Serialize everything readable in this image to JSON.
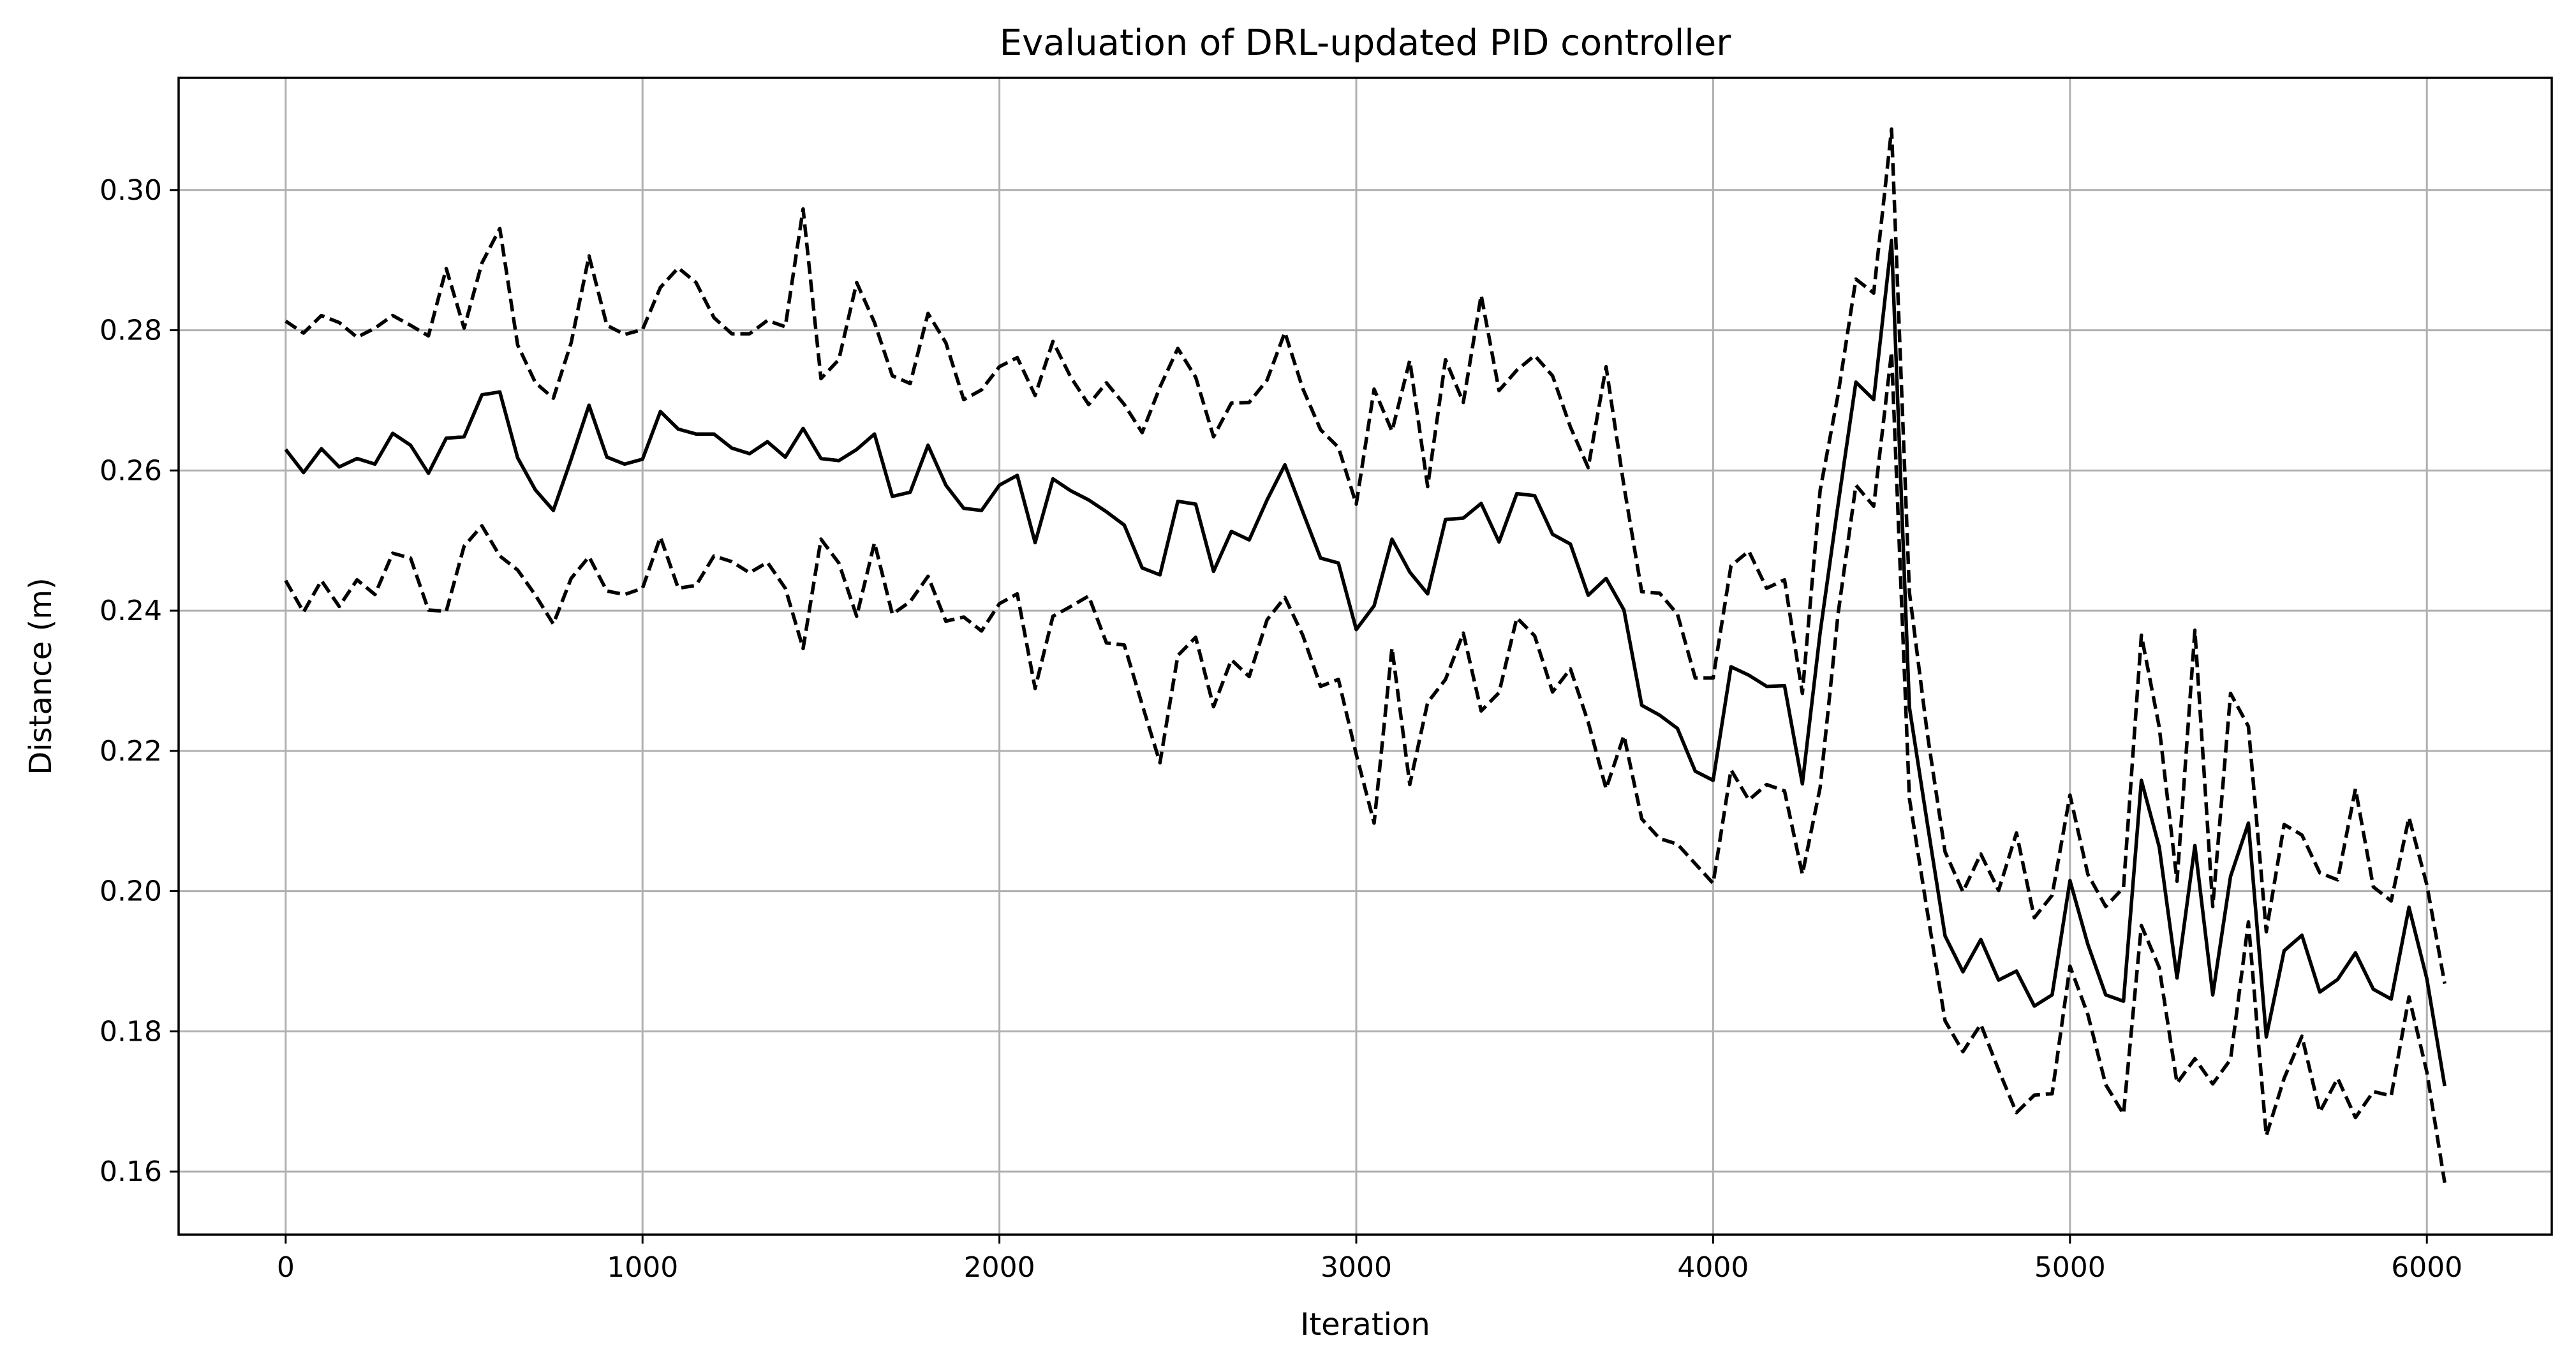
{
  "chart_data": {
    "type": "line",
    "title": "Evaluation of DRL-updated PID controller",
    "xlabel": "Iteration",
    "ylabel": "Distance (m)",
    "xlim": [
      -300,
      6350
    ],
    "ylim": [
      0.151,
      0.316
    ],
    "xticks": [
      0,
      1000,
      2000,
      3000,
      4000,
      5000,
      6000
    ],
    "yticks": [
      0.16,
      0.18,
      0.2,
      0.22,
      0.24,
      0.26,
      0.28,
      0.3
    ],
    "ytick_labels": [
      "0.16",
      "0.18",
      "0.20",
      "0.22",
      "0.24",
      "0.26",
      "0.28",
      "0.30"
    ],
    "xtick_labels": [
      "0",
      "1000",
      "2000",
      "3000",
      "4000",
      "5000",
      "6000"
    ],
    "grid": true,
    "line_color": "#000000",
    "x": [
      0,
      50,
      100,
      150,
      200,
      250,
      300,
      350,
      400,
      450,
      500,
      550,
      600,
      650,
      700,
      750,
      800,
      850,
      900,
      950,
      1000,
      1050,
      1100,
      1150,
      1200,
      1250,
      1300,
      1350,
      1400,
      1450,
      1500,
      1550,
      1600,
      1650,
      1700,
      1750,
      1800,
      1850,
      1900,
      1950,
      2000,
      2050,
      2100,
      2150,
      2200,
      2250,
      2300,
      2350,
      2400,
      2450,
      2500,
      2550,
      2600,
      2650,
      2700,
      2750,
      2800,
      2850,
      2900,
      2950,
      3000,
      3050,
      3100,
      3150,
      3200,
      3250,
      3300,
      3350,
      3400,
      3450,
      3500,
      3550,
      3600,
      3650,
      3700,
      3750,
      3800,
      3850,
      3900,
      3950,
      4000,
      4050,
      4100,
      4150,
      4200,
      4250,
      4300,
      4350,
      4400,
      4450,
      4500,
      4550,
      4600,
      4650,
      4700,
      4750,
      4800,
      4850,
      4900,
      4950,
      5000,
      5050,
      5100,
      5150,
      5200,
      5250,
      5300,
      5350,
      5400,
      5450,
      5500,
      5550,
      5600,
      5650,
      5700,
      5750,
      5800,
      5850,
      5900,
      5950,
      6000,
      6050
    ],
    "series": [
      {
        "style": "solid",
        "values": [
          0.263,
          0.2597,
          0.2631,
          0.2605,
          0.2617,
          0.2609,
          0.2653,
          0.2636,
          0.2596,
          0.2646,
          0.2648,
          0.2708,
          0.2712,
          0.2618,
          0.2572,
          0.2543,
          0.2616,
          0.2693,
          0.2619,
          0.2609,
          0.2616,
          0.2684,
          0.2659,
          0.2652,
          0.2652,
          0.2632,
          0.2624,
          0.2641,
          0.2619,
          0.266,
          0.2617,
          0.2614,
          0.263,
          0.2652,
          0.2563,
          0.2569,
          0.2636,
          0.2579,
          0.2546,
          0.2543,
          0.2579,
          0.2593,
          0.2497,
          0.2588,
          0.2571,
          0.2558,
          0.2541,
          0.2522,
          0.2461,
          0.2451,
          0.2556,
          0.2552,
          0.2456,
          0.2513,
          0.2501,
          0.2558,
          0.2608,
          0.2541,
          0.2475,
          0.2468,
          0.2373,
          0.2407,
          0.2502,
          0.2455,
          0.2424,
          0.253,
          0.2532,
          0.2553,
          0.2498,
          0.2567,
          0.2564,
          0.2509,
          0.2495,
          0.2422,
          0.2446,
          0.2401,
          0.2265,
          0.2251,
          0.2232,
          0.2171,
          0.2158,
          0.232,
          0.2308,
          0.2292,
          0.2293,
          0.2153,
          0.2369,
          0.2551,
          0.2726,
          0.2701,
          0.2928,
          0.2262,
          0.2097,
          0.1936,
          0.1885,
          0.1931,
          0.1873,
          0.1886,
          0.1836,
          0.1852,
          0.2015,
          0.1924,
          0.1852,
          0.1843,
          0.2158,
          0.2063,
          0.1876,
          0.2065,
          0.1852,
          0.2021,
          0.2097,
          0.1792,
          0.1915,
          0.1937,
          0.1856,
          0.1874,
          0.1912,
          0.186,
          0.1846,
          0.1977,
          0.1875,
          0.1722
        ]
      },
      {
        "style": "dashed",
        "values": [
          0.2813,
          0.2796,
          0.2821,
          0.2811,
          0.279,
          0.2803,
          0.2821,
          0.2807,
          0.2792,
          0.2888,
          0.2803,
          0.2896,
          0.2945,
          0.2779,
          0.2725,
          0.2703,
          0.2782,
          0.2906,
          0.2807,
          0.2794,
          0.2801,
          0.2861,
          0.2889,
          0.2868,
          0.2818,
          0.2795,
          0.2795,
          0.2814,
          0.2805,
          0.2973,
          0.2731,
          0.2758,
          0.2868,
          0.2811,
          0.2735,
          0.2724,
          0.2824,
          0.2782,
          0.2701,
          0.2715,
          0.2748,
          0.2761,
          0.2707,
          0.2784,
          0.2733,
          0.2694,
          0.2725,
          0.2694,
          0.2654,
          0.2719,
          0.2774,
          0.2733,
          0.2648,
          0.2696,
          0.2697,
          0.2729,
          0.2797,
          0.2717,
          0.2658,
          0.2633,
          0.2552,
          0.2716,
          0.2656,
          0.2757,
          0.2577,
          0.2758,
          0.2697,
          0.285,
          0.2714,
          0.2743,
          0.2764,
          0.2735,
          0.2662,
          0.2604,
          0.2748,
          0.2578,
          0.2427,
          0.2425,
          0.2395,
          0.2304,
          0.2304,
          0.2464,
          0.2485,
          0.2432,
          0.2444,
          0.2282,
          0.2572,
          0.2708,
          0.2873,
          0.2853,
          0.3087,
          0.2426,
          0.2225,
          0.2056,
          0.1999,
          0.2053,
          0.2001,
          0.2083,
          0.1962,
          0.1994,
          0.2137,
          0.2024,
          0.1978,
          0.2005,
          0.2365,
          0.2234,
          0.2014,
          0.2372,
          0.1978,
          0.2282,
          0.2235,
          0.1942,
          0.2095,
          0.208,
          0.2026,
          0.2016,
          0.2146,
          0.2006,
          0.1986,
          0.2105,
          0.2009,
          0.1868
        ]
      },
      {
        "style": "dashed",
        "values": [
          0.2443,
          0.2398,
          0.2443,
          0.2406,
          0.2444,
          0.2423,
          0.2482,
          0.2475,
          0.2401,
          0.2399,
          0.2492,
          0.2521,
          0.2478,
          0.2458,
          0.2422,
          0.2381,
          0.2446,
          0.2477,
          0.2428,
          0.2423,
          0.2432,
          0.2505,
          0.2432,
          0.2436,
          0.2478,
          0.247,
          0.2454,
          0.2469,
          0.2432,
          0.2346,
          0.2502,
          0.2468,
          0.2392,
          0.2497,
          0.2395,
          0.2413,
          0.2449,
          0.2385,
          0.2391,
          0.2371,
          0.241,
          0.2424,
          0.2289,
          0.2392,
          0.2406,
          0.2421,
          0.2354,
          0.2351,
          0.2266,
          0.2183,
          0.2336,
          0.2362,
          0.2263,
          0.233,
          0.2306,
          0.2387,
          0.2419,
          0.2365,
          0.2292,
          0.2302,
          0.2195,
          0.2097,
          0.2347,
          0.2152,
          0.2269,
          0.2302,
          0.2368,
          0.2257,
          0.2283,
          0.239,
          0.2364,
          0.2284,
          0.2317,
          0.2241,
          0.2146,
          0.2222,
          0.2103,
          0.2075,
          0.2067,
          0.2039,
          0.2011,
          0.2173,
          0.213,
          0.2152,
          0.2143,
          0.2024,
          0.2148,
          0.2395,
          0.2579,
          0.2549,
          0.2769,
          0.2132,
          0.1971,
          0.1815,
          0.1771,
          0.181,
          0.1745,
          0.1684,
          0.1709,
          0.1711,
          0.1893,
          0.1824,
          0.1724,
          0.1682,
          0.1951,
          0.1891,
          0.1726,
          0.1761,
          0.1725,
          0.176,
          0.1956,
          0.1651,
          0.1733,
          0.1793,
          0.1685,
          0.1733,
          0.1677,
          0.1714,
          0.1708,
          0.1849,
          0.1742,
          0.1584
        ]
      }
    ]
  }
}
